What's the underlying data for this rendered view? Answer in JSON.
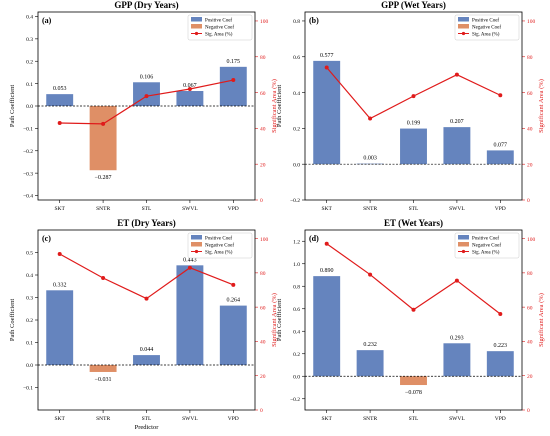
{
  "figure": {
    "xlabel": "Predictor"
  },
  "colors": {
    "positive": "#6584be",
    "negative": "#df8f66",
    "line": "#e01b1b"
  },
  "chart_data": [
    {
      "panel_label": "(a)",
      "type": "bar",
      "title": "GPP (Dry Years)",
      "categories": [
        "SKT",
        "SNTR",
        "STL",
        "SWVL",
        "VPD"
      ],
      "values": [
        0.053,
        -0.287,
        0.106,
        0.067,
        0.175
      ],
      "value_labels": [
        "0.053",
        "−0.287",
        "0.106",
        "0.067",
        "0.175"
      ],
      "ylabel": "Path Coefficient",
      "ylim": [
        -0.42,
        0.42
      ],
      "yticks": [
        -0.4,
        -0.3,
        -0.2,
        -0.1,
        0.0,
        0.1,
        0.2,
        0.3,
        0.4
      ],
      "ytick_labels": [
        "−0.4",
        "−0.3",
        "−0.2",
        "−0.1",
        "0.0",
        "0.1",
        "0.2",
        "0.3",
        "0.4"
      ],
      "y2label": "Significant Area (%)",
      "y2lim": [
        0,
        105
      ],
      "y2ticks": [
        0,
        20,
        40,
        60,
        80,
        100
      ],
      "y2tick_labels": [
        "0",
        "20",
        "40",
        "60",
        "80",
        "100"
      ],
      "sig_area": [
        43,
        42.5,
        58,
        62,
        67
      ],
      "legend": [
        "Positive Coef",
        "Negative Coef",
        "Sig. Area (%)"
      ],
      "legend_position": "top-right",
      "show_xlabel": false
    },
    {
      "panel_label": "(b)",
      "type": "bar",
      "title": "GPP (Wet Years)",
      "categories": [
        "SKT",
        "SNTR",
        "STL",
        "SWVL",
        "VPD"
      ],
      "values": [
        0.577,
        0.003,
        0.199,
        0.207,
        0.077
      ],
      "value_labels": [
        "0.577",
        "0.003",
        "0.199",
        "0.207",
        "0.077"
      ],
      "ylabel": "Path Coefficient",
      "ylim": [
        -0.2,
        0.85
      ],
      "yticks": [
        -0.2,
        0.0,
        0.2,
        0.4,
        0.6,
        0.8
      ],
      "ytick_labels": [
        "−0.2",
        "0.0",
        "0.2",
        "0.4",
        "0.6",
        "0.8"
      ],
      "y2label": "Significant Area (%)",
      "y2lim": [
        0,
        105
      ],
      "y2ticks": [
        0,
        20,
        40,
        60,
        80,
        100
      ],
      "y2tick_labels": [
        "0",
        "20",
        "40",
        "60",
        "80",
        "100"
      ],
      "sig_area": [
        74,
        45.5,
        58,
        70,
        58.5
      ],
      "legend": [
        "Positive Coef",
        "Negative Coef",
        "Sig. Area (%)"
      ],
      "legend_position": "top-right",
      "show_xlabel": false
    },
    {
      "panel_label": "(c)",
      "type": "bar",
      "title": "ET (Dry Years)",
      "categories": [
        "SKT",
        "SNTR",
        "STL",
        "SWVL",
        "VPD"
      ],
      "values": [
        0.332,
        -0.031,
        0.044,
        0.443,
        0.264
      ],
      "value_labels": [
        "0.332",
        "−0.031",
        "0.044",
        "0.443",
        "0.264"
      ],
      "ylabel": "Path Coefficient",
      "ylim": [
        -0.2,
        0.6
      ],
      "yticks": [
        -0.1,
        0.0,
        0.1,
        0.2,
        0.3,
        0.4,
        0.5
      ],
      "ytick_labels": [
        "−0.1",
        "0.0",
        "0.1",
        "0.2",
        "0.3",
        "0.4",
        "0.5"
      ],
      "y2label": "Significant Area (%)",
      "y2lim": [
        0,
        105
      ],
      "y2ticks": [
        0,
        20,
        40,
        60,
        80,
        100
      ],
      "y2tick_labels": [
        "0",
        "20",
        "40",
        "60",
        "80",
        "100"
      ],
      "sig_area": [
        91,
        77,
        65,
        83,
        73
      ],
      "legend": [
        "Positive Coef",
        "Negative Coef",
        "Sig. Area (%)"
      ],
      "legend_position": "top-right",
      "show_xlabel": true
    },
    {
      "panel_label": "(d)",
      "type": "bar",
      "title": "ET (Wet Years)",
      "categories": [
        "SKT",
        "SNTR",
        "STL",
        "SWVL",
        "VPD"
      ],
      "values": [
        0.89,
        0.232,
        -0.078,
        0.293,
        0.223
      ],
      "value_labels": [
        "0.890",
        "0.232",
        "−0.078",
        "0.293",
        "0.223"
      ],
      "ylabel": "Path Coefficient",
      "ylim": [
        -0.3,
        1.3
      ],
      "yticks": [
        -0.2,
        0.0,
        0.2,
        0.4,
        0.6,
        0.8,
        1.0,
        1.2
      ],
      "ytick_labels": [
        "−0.2",
        "0.0",
        "0.2",
        "0.4",
        "0.6",
        "0.8",
        "1.0",
        "1.2"
      ],
      "y2label": "Significant Area (%)",
      "y2lim": [
        0,
        105
      ],
      "y2ticks": [
        0,
        20,
        40,
        60,
        80,
        100
      ],
      "y2tick_labels": [
        "0",
        "20",
        "40",
        "60",
        "80",
        "100"
      ],
      "sig_area": [
        97,
        79,
        58.5,
        75.5,
        56
      ],
      "legend": [
        "Positive Coef",
        "Negative Coef",
        "Sig. Area (%)"
      ],
      "legend_position": "top-right",
      "show_xlabel": false
    }
  ]
}
